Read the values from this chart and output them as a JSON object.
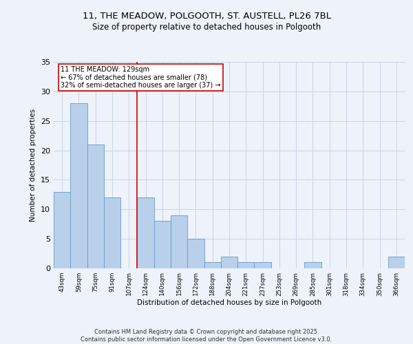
{
  "title_line1": "11, THE MEADOW, POLGOOTH, ST. AUSTELL, PL26 7BL",
  "title_line2": "Size of property relative to detached houses in Polgooth",
  "xlabel": "Distribution of detached houses by size in Polgooth",
  "ylabel": "Number of detached properties",
  "bar_labels": [
    "43sqm",
    "59sqm",
    "75sqm",
    "91sqm",
    "107sqm",
    "124sqm",
    "140sqm",
    "156sqm",
    "172sqm",
    "188sqm",
    "204sqm",
    "221sqm",
    "237sqm",
    "253sqm",
    "269sqm",
    "285sqm",
    "301sqm",
    "318sqm",
    "334sqm",
    "350sqm",
    "366sqm"
  ],
  "bar_values": [
    13,
    28,
    21,
    12,
    0,
    12,
    8,
    9,
    5,
    1,
    2,
    1,
    1,
    0,
    0,
    1,
    0,
    0,
    0,
    0,
    2
  ],
  "bar_color": "#b8d0ea",
  "bar_edge_color": "#6699cc",
  "annotation_text": "11 THE MEADOW: 129sqm\n← 67% of detached houses are smaller (78)\n32% of semi-detached houses are larger (37) →",
  "annotation_box_facecolor": "#ffffff",
  "annotation_box_edgecolor": "#cc0000",
  "vline_color": "#cc0000",
  "footer_text": "Contains HM Land Registry data © Crown copyright and database right 2025.\nContains public sector information licensed under the Open Government Licence v3.0.",
  "background_color": "#eef2fa",
  "grid_color": "#c8d4e8",
  "ylim": [
    0,
    35
  ],
  "yticks": [
    0,
    5,
    10,
    15,
    20,
    25,
    30,
    35
  ]
}
